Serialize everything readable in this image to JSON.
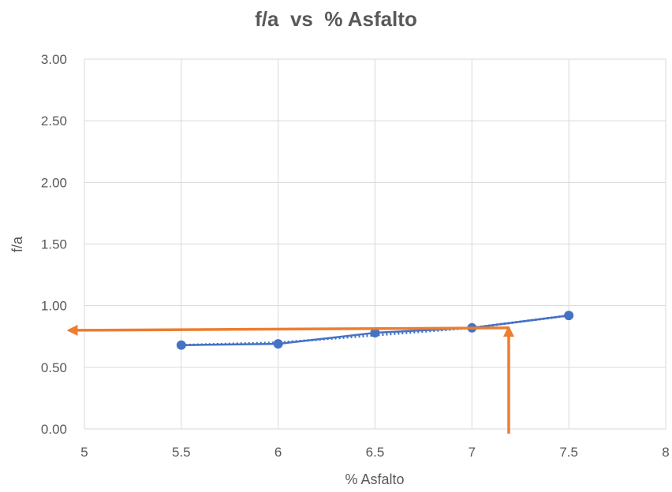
{
  "chart_data": {
    "type": "line",
    "title": "f/a  vs  % Asfalto",
    "xlabel": "% Asfalto",
    "ylabel": "f/a",
    "xlim": [
      5,
      8
    ],
    "ylim": [
      0,
      3
    ],
    "x_ticks": [
      "5",
      "5.5",
      "6",
      "6.5",
      "7",
      "7.5",
      "8"
    ],
    "y_ticks": [
      "0.00",
      "0.50",
      "1.00",
      "1.50",
      "2.00",
      "2.50",
      "3.00"
    ],
    "grid": true,
    "series": [
      {
        "x": [
          5.5,
          6,
          6.5,
          7,
          7.5
        ],
        "y": [
          0.68,
          0.69,
          0.78,
          0.82,
          0.92
        ],
        "color": "#4472C4"
      }
    ],
    "trendline": {
      "style": "dotted",
      "color": "#4472C4",
      "x": [
        5.5,
        6,
        6.5,
        7,
        7.5
      ],
      "y": [
        0.68,
        0.7,
        0.76,
        0.82,
        0.92
      ]
    },
    "annotations": [
      {
        "type": "arrow",
        "description": "vertical arrow up from x-axis",
        "color": "#ED7D31",
        "from": [
          7.19,
          0
        ],
        "to": [
          7.19,
          0.82
        ]
      },
      {
        "type": "arrow",
        "description": "horizontal arrow to y-axis",
        "color": "#ED7D31",
        "from": [
          7.19,
          0.82
        ],
        "to": [
          4.92,
          0.8
        ]
      }
    ]
  }
}
